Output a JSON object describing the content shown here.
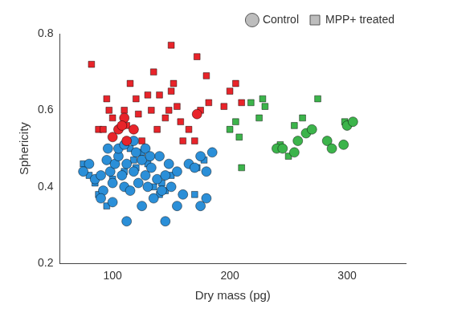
{
  "chart_data": {
    "type": "scatter",
    "x_label": "Dry mass (pg)",
    "y_label": "Sphericity",
    "xlim": [
      55,
      350
    ],
    "xticks": [
      100,
      200,
      300
    ],
    "ylim": [
      0.2,
      0.8
    ],
    "yticks": [
      0.2,
      0.4,
      0.6,
      0.8
    ],
    "grid": false,
    "legend": "upper right",
    "series": [
      {
        "name": "Control",
        "marker": "circle",
        "color": "#bdbdbd",
        "x": [
          75,
          80,
          85,
          90,
          95,
          92,
          98,
          102,
          100,
          105,
          108,
          110,
          112,
          115,
          118,
          120,
          122,
          125,
          128,
          130,
          133,
          135,
          138,
          140,
          142,
          145,
          148,
          150,
          155,
          160,
          165,
          170,
          175,
          180,
          185,
          90,
          100,
          112,
          125,
          145,
          155,
          175,
          180,
          105,
          118,
          128,
          132,
          96,
          110,
          100,
          105,
          110,
          112,
          118,
          108,
          172,
          240,
          245,
          255,
          265,
          270,
          283,
          287,
          297,
          300,
          305,
          258
        ],
        "values": [
          0.44,
          0.46,
          0.42,
          0.43,
          0.47,
          0.39,
          0.44,
          0.46,
          0.41,
          0.48,
          0.43,
          0.4,
          0.46,
          0.39,
          0.44,
          0.49,
          0.41,
          0.47,
          0.43,
          0.4,
          0.45,
          0.37,
          0.42,
          0.48,
          0.39,
          0.43,
          0.46,
          0.4,
          0.44,
          0.38,
          0.46,
          0.45,
          0.48,
          0.44,
          0.49,
          0.37,
          0.36,
          0.31,
          0.35,
          0.31,
          0.35,
          0.35,
          0.37,
          0.5,
          0.52,
          0.5,
          0.48,
          0.5,
          0.51,
          0.53,
          0.55,
          0.58,
          0.52,
          0.55,
          0.56,
          0.59,
          0.5,
          0.5,
          0.49,
          0.54,
          0.55,
          0.52,
          0.5,
          0.51,
          0.56,
          0.57,
          0.52
        ],
        "colors": [
          "#2b8fd8",
          "#2b8fd8",
          "#2b8fd8",
          "#2b8fd8",
          "#2b8fd8",
          "#2b8fd8",
          "#2b8fd8",
          "#2b8fd8",
          "#2b8fd8",
          "#2b8fd8",
          "#2b8fd8",
          "#2b8fd8",
          "#2b8fd8",
          "#2b8fd8",
          "#2b8fd8",
          "#2b8fd8",
          "#2b8fd8",
          "#2b8fd8",
          "#2b8fd8",
          "#2b8fd8",
          "#2b8fd8",
          "#2b8fd8",
          "#2b8fd8",
          "#2b8fd8",
          "#2b8fd8",
          "#2b8fd8",
          "#2b8fd8",
          "#2b8fd8",
          "#2b8fd8",
          "#2b8fd8",
          "#2b8fd8",
          "#2b8fd8",
          "#2b8fd8",
          "#2b8fd8",
          "#2b8fd8",
          "#2b8fd8",
          "#2b8fd8",
          "#2b8fd8",
          "#2b8fd8",
          "#2b8fd8",
          "#2b8fd8",
          "#2b8fd8",
          "#2b8fd8",
          "#2b8fd8",
          "#2b8fd8",
          "#2b8fd8",
          "#2b8fd8",
          "#2b8fd8",
          "#2b8fd8",
          "#e8242a",
          "#e8242a",
          "#e8242a",
          "#e8242a",
          "#e8242a",
          "#e8242a",
          "#e8242a",
          "#3cb44b",
          "#3cb44b",
          "#3cb44b",
          "#3cb44b",
          "#3cb44b",
          "#3cb44b",
          "#3cb44b",
          "#3cb44b",
          "#3cb44b",
          "#3cb44b",
          "#3cb44b"
        ]
      },
      {
        "name": "MPP+ treated",
        "marker": "square",
        "color": "#bdbdbd",
        "x": [
          82,
          88,
          92,
          95,
          97,
          100,
          110,
          112,
          115,
          120,
          122,
          125,
          130,
          133,
          135,
          138,
          145,
          148,
          150,
          152,
          155,
          158,
          160,
          165,
          170,
          172,
          175,
          180,
          182,
          200,
          205,
          195,
          150,
          140,
          210,
          75,
          80,
          85,
          88,
          95,
          100,
          105,
          110,
          115,
          118,
          125,
          130,
          135,
          140,
          142,
          145,
          150,
          170,
          172,
          178,
          120,
          200,
          205,
          218,
          225,
          228,
          230,
          210,
          250,
          255,
          262,
          275,
          298,
          243,
          208
        ],
        "values": [
          0.72,
          0.55,
          0.55,
          0.63,
          0.6,
          0.58,
          0.6,
          0.56,
          0.67,
          0.63,
          0.59,
          0.52,
          0.64,
          0.6,
          0.7,
          0.55,
          0.58,
          0.6,
          0.77,
          0.67,
          0.61,
          0.57,
          0.52,
          0.55,
          0.52,
          0.74,
          0.6,
          0.69,
          0.62,
          0.65,
          0.67,
          0.61,
          0.65,
          0.64,
          0.62,
          0.46,
          0.43,
          0.41,
          0.38,
          0.35,
          0.42,
          0.48,
          0.44,
          0.5,
          0.47,
          0.49,
          0.46,
          0.4,
          0.38,
          0.41,
          0.39,
          0.43,
          0.38,
          0.45,
          0.47,
          0.45,
          0.55,
          0.57,
          0.62,
          0.58,
          0.63,
          0.61,
          0.45,
          0.48,
          0.56,
          0.58,
          0.63,
          0.57,
          0.51,
          0.53
        ],
        "colors": [
          "#e8242a",
          "#e8242a",
          "#e8242a",
          "#e8242a",
          "#e8242a",
          "#e8242a",
          "#e8242a",
          "#e8242a",
          "#e8242a",
          "#e8242a",
          "#e8242a",
          "#e8242a",
          "#e8242a",
          "#e8242a",
          "#e8242a",
          "#e8242a",
          "#e8242a",
          "#e8242a",
          "#e8242a",
          "#e8242a",
          "#e8242a",
          "#e8242a",
          "#e8242a",
          "#e8242a",
          "#e8242a",
          "#e8242a",
          "#e8242a",
          "#e8242a",
          "#e8242a",
          "#e8242a",
          "#e8242a",
          "#e8242a",
          "#e8242a",
          "#e8242a",
          "#e8242a",
          "#2b8fd8",
          "#2b8fd8",
          "#2b8fd8",
          "#2b8fd8",
          "#2b8fd8",
          "#2b8fd8",
          "#2b8fd8",
          "#2b8fd8",
          "#2b8fd8",
          "#2b8fd8",
          "#2b8fd8",
          "#2b8fd8",
          "#2b8fd8",
          "#2b8fd8",
          "#2b8fd8",
          "#2b8fd8",
          "#2b8fd8",
          "#2b8fd8",
          "#2b8fd8",
          "#2b8fd8",
          "#2b8fd8",
          "#3cb44b",
          "#3cb44b",
          "#3cb44b",
          "#3cb44b",
          "#3cb44b",
          "#3cb44b",
          "#3cb44b",
          "#3cb44b",
          "#3cb44b",
          "#3cb44b",
          "#3cb44b",
          "#3cb44b",
          "#3cb44b",
          "#3cb44b"
        ]
      }
    ]
  }
}
